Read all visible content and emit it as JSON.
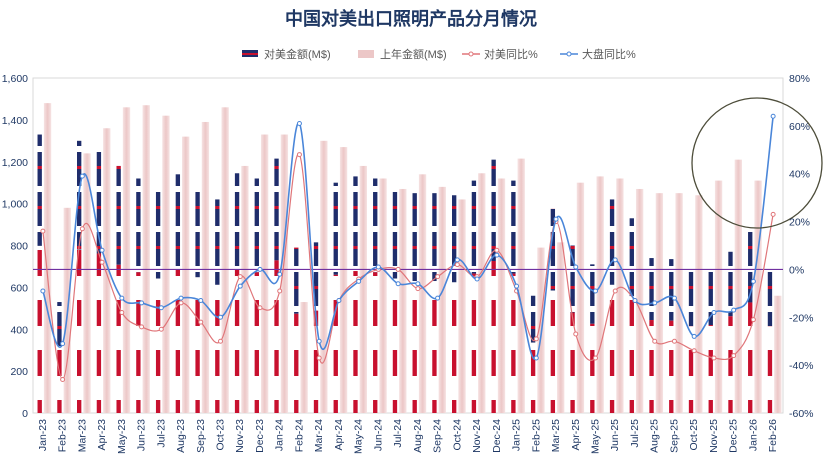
{
  "chart_data": {
    "type": "bar",
    "title": "中国对美出口照明产品分月情况",
    "categories": [
      "Jan-23",
      "Feb-23",
      "Mar-23",
      "Apr-23",
      "May-23",
      "Jun-23",
      "Jul-23",
      "Aug-23",
      "Sep-23",
      "Oct-23",
      "Nov-23",
      "Dec-23",
      "Jan-24",
      "Feb-24",
      "Mar-24",
      "Apr-24",
      "May-24",
      "Jun-24",
      "Jul-24",
      "Aug-24",
      "Sep-24",
      "Oct-24",
      "Nov-24",
      "Dec-24",
      "Jan-25",
      "Feb-25",
      "Mar-25",
      "Apr-25",
      "May-25",
      "Jun-25",
      "Jul-25",
      "Aug-25",
      "Sep-25",
      "Oct-25",
      "Nov-25",
      "Dec-25",
      "Jan-26",
      "Feb-26"
    ],
    "series": [
      {
        "name": "对美金额(M$)",
        "type": "bar",
        "axis": "left",
        "values": [
          1330,
          530,
          1300,
          1270,
          1180,
          1120,
          1070,
          1140,
          1080,
          1020,
          1145,
          1120,
          1215,
          790,
          815,
          1100,
          1130,
          1120,
          1070,
          1050,
          1050,
          1040,
          1110,
          1210,
          1110,
          560,
          975,
          800,
          710,
          1020,
          930,
          740,
          735,
          690,
          700,
          770,
          880,
          690
        ]
      },
      {
        "name": "上年金额(M$)",
        "type": "bar",
        "axis": "left",
        "values": [
          1480,
          980,
          1240,
          1360,
          1460,
          1470,
          1420,
          1320,
          1390,
          1460,
          1180,
          1330,
          1330,
          530,
          1300,
          1270,
          1180,
          1120,
          1070,
          1140,
          1080,
          1020,
          1145,
          1120,
          1215,
          790,
          815,
          1100,
          1130,
          1120,
          1070,
          1050,
          1050,
          1040,
          1110,
          1210,
          1110,
          560
        ]
      },
      {
        "name": "对美同比%",
        "type": "line",
        "axis": "right",
        "values": [
          16,
          -46,
          17,
          3,
          -18,
          -24,
          -25,
          -14,
          -22,
          -30,
          -3,
          -16,
          -9,
          48,
          -37,
          -13,
          -4,
          0,
          0,
          -8,
          -3,
          2,
          -3,
          8,
          -9,
          -29,
          20,
          -27,
          -37,
          -9,
          -13,
          -30,
          -30,
          -34,
          -37,
          -36,
          -21,
          23
        ]
      },
      {
        "name": "大盘同比%",
        "type": "line",
        "axis": "right",
        "values": [
          -9,
          -31,
          39,
          8,
          -12,
          -14,
          -16,
          -12,
          -13,
          -20,
          -7,
          0,
          -2,
          61,
          -30,
          -13,
          -5,
          1,
          -6,
          -6,
          -12,
          4,
          -4,
          6,
          -7,
          -37,
          21,
          1,
          -9,
          4,
          -13,
          -14,
          -12,
          -28,
          -18,
          -17,
          -5,
          64
        ]
      }
    ],
    "ylim_left": [
      0,
      1600
    ],
    "yticks_left": [
      "0",
      "200",
      "400",
      "600",
      "800",
      "1,000",
      "1,200",
      "1,400",
      "1,600"
    ],
    "ylim_right": [
      -60,
      80
    ],
    "yticks_right": [
      "-60%",
      "-40%",
      "-20%",
      "0%",
      "20%",
      "40%",
      "60%",
      "80%"
    ],
    "legend_position": "top",
    "colors": {
      "bar_current": "#1f2d6b",
      "bar_current_stripe": "#c8102e",
      "bar_prev": "#ecc7c7",
      "line_us": "#e0767a",
      "line_total": "#4a86d9",
      "zero_line": "#7030a0",
      "title": "#1f3864",
      "axis_text": "#1f3864"
    }
  }
}
